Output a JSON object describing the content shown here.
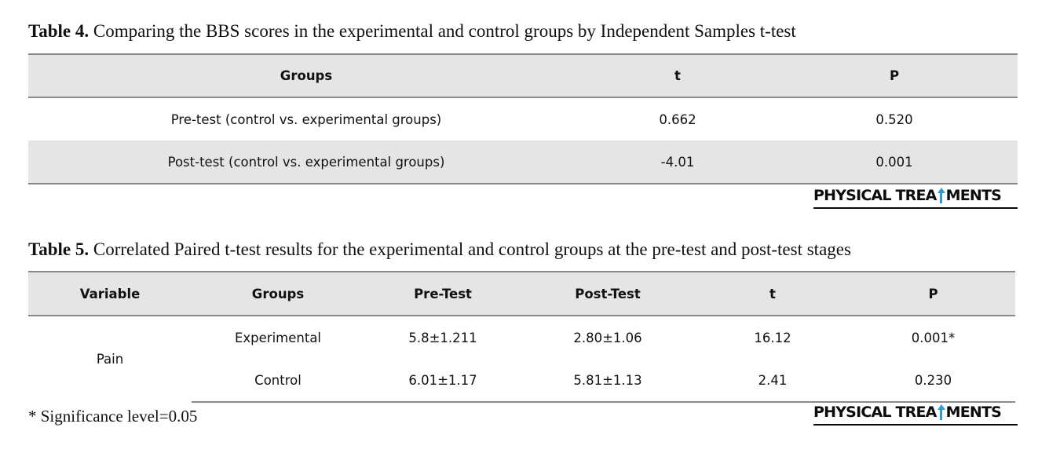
{
  "table4": {
    "caption_label": "Table 4.",
    "caption_text": " Comparing the BBS scores in the experimental and control groups by Independent Samples t-test",
    "headers": [
      "Groups",
      "t",
      "P"
    ],
    "rows": [
      [
        "Pre-test (control vs. experimental groups)",
        "0.662",
        "0.520"
      ],
      [
        "Post-test (control vs. experimental groups)",
        "-4.01",
        "0.001"
      ]
    ]
  },
  "table5": {
    "caption_label": "Table 5.",
    "caption_text": " Correlated Paired t-test results for the experimental and control groups at the pre-test and post-test stages",
    "headers": [
      "Variable",
      "Groups",
      "Pre-Test",
      "Post-Test",
      "t",
      "P"
    ],
    "variable": "Pain",
    "rows": [
      [
        "Experimental",
        "5.8±1.211",
        "2.80±1.06",
        "16.12",
        "0.001*"
      ],
      [
        "Control",
        "6.01±1.17",
        "5.81±1.13",
        "2.41",
        "0.230"
      ]
    ]
  },
  "logo": {
    "before": "PHYSICAL TREA",
    "after": "MENTS",
    "icon": "up-arrow-icon",
    "accent": "#2a9fd6"
  },
  "footnote": "* Significance level=0.05"
}
